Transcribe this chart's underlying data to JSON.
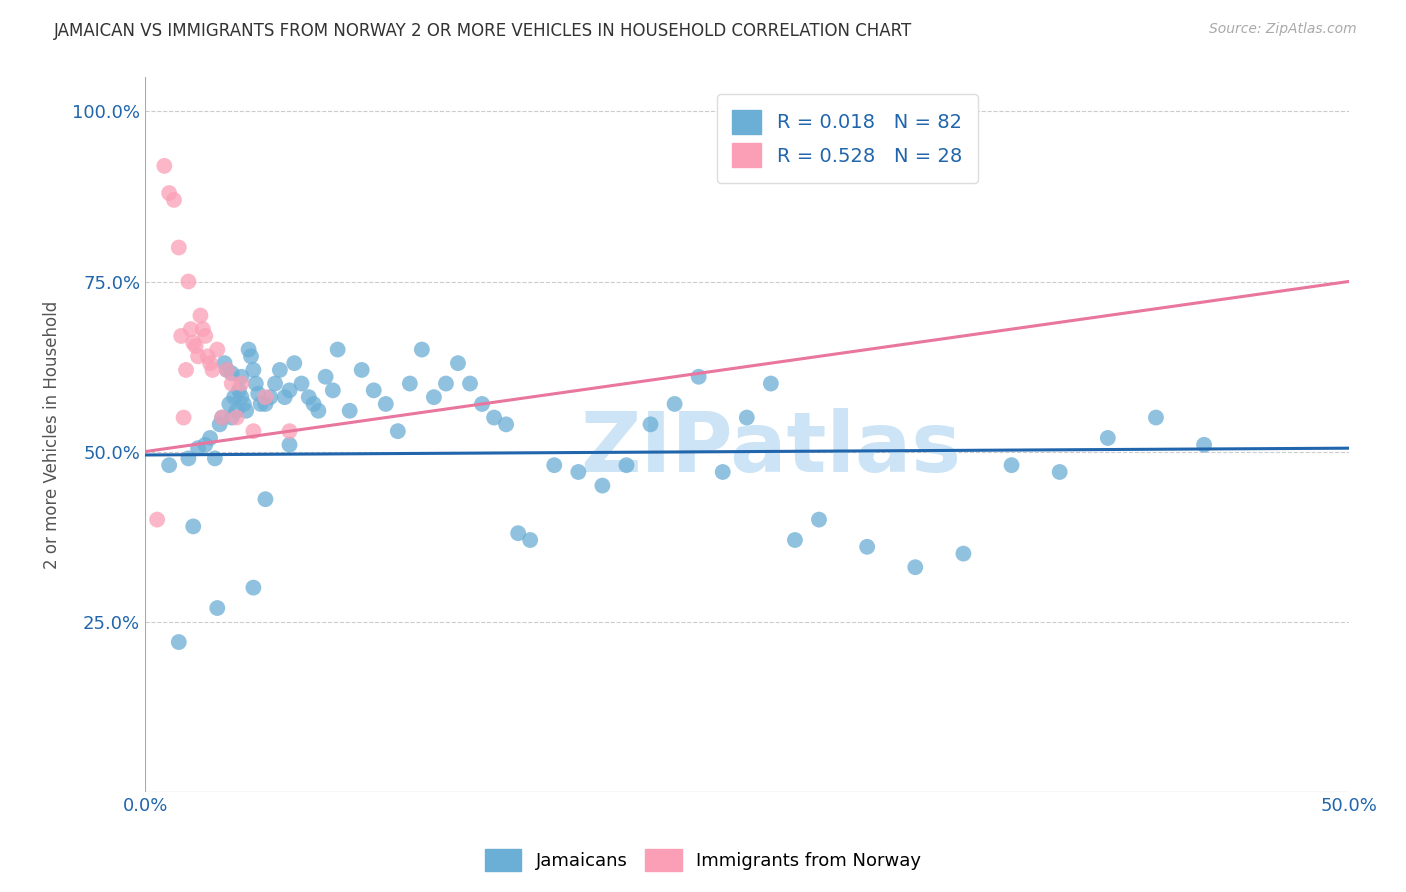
{
  "title": "JAMAICAN VS IMMIGRANTS FROM NORWAY 2 OR MORE VEHICLES IN HOUSEHOLD CORRELATION CHART",
  "source": "Source: ZipAtlas.com",
  "ylabel": "2 or more Vehicles in Household",
  "yticks": [
    0.0,
    25.0,
    50.0,
    75.0,
    100.0
  ],
  "ytick_labels": [
    "",
    "25.0%",
    "50.0%",
    "75.0%",
    "100.0%"
  ],
  "xtick_labels": [
    "0.0%",
    "",
    "",
    "",
    "",
    "50.0%"
  ],
  "xlim_min": 0.0,
  "xlim_max": 50.0,
  "ylim_min": 0.0,
  "ylim_max": 105.0,
  "legend_r1": "R = 0.018",
  "legend_n1": "N = 82",
  "legend_r2": "R = 0.528",
  "legend_n2": "N = 28",
  "blue_color": "#6baed6",
  "pink_color": "#fa9fb5",
  "blue_line_color": "#2166ac",
  "pink_line_color": "#e8769e",
  "axis_label_color": "#2166ac",
  "watermark": "ZIPatlas",
  "watermark_color": "#cce4f5",
  "grid_color": "#cccccc",
  "blue_label": "Jamaicans",
  "pink_label": "Immigrants from Norway",
  "blue_trend_x": [
    0.0,
    50.0
  ],
  "blue_trend_y": [
    49.5,
    50.5
  ],
  "pink_trend_x": [
    0.0,
    50.0
  ],
  "pink_trend_y": [
    50.0,
    75.0
  ],
  "blue_x": [
    1.4,
    1.8,
    2.2,
    2.5,
    2.7,
    2.9,
    3.1,
    3.2,
    3.3,
    3.4,
    3.5,
    3.6,
    3.6,
    3.7,
    3.8,
    3.9,
    4.0,
    4.0,
    4.1,
    4.2,
    4.3,
    4.4,
    4.5,
    4.6,
    4.7,
    4.8,
    5.0,
    5.2,
    5.4,
    5.6,
    5.8,
    6.0,
    6.2,
    6.5,
    6.8,
    7.0,
    7.2,
    7.5,
    7.8,
    8.0,
    8.5,
    9.0,
    9.5,
    10.0,
    10.5,
    11.0,
    11.5,
    12.0,
    12.5,
    13.0,
    13.5,
    14.0,
    14.5,
    15.0,
    15.5,
    16.0,
    17.0,
    18.0,
    19.0,
    20.0,
    21.0,
    22.0,
    23.0,
    24.0,
    25.0,
    26.0,
    27.0,
    28.0,
    30.0,
    32.0,
    34.0,
    36.0,
    38.0,
    40.0,
    42.0,
    44.0,
    1.0,
    2.0,
    3.0,
    4.5,
    5.0,
    6.0
  ],
  "blue_y": [
    22.0,
    49.0,
    50.5,
    51.0,
    52.0,
    49.0,
    54.0,
    55.0,
    63.0,
    62.0,
    57.0,
    61.5,
    55.0,
    58.0,
    56.0,
    59.0,
    61.0,
    58.0,
    57.0,
    56.0,
    65.0,
    64.0,
    62.0,
    60.0,
    58.5,
    57.0,
    57.0,
    58.0,
    60.0,
    62.0,
    58.0,
    59.0,
    63.0,
    60.0,
    58.0,
    57.0,
    56.0,
    61.0,
    59.0,
    65.0,
    56.0,
    62.0,
    59.0,
    57.0,
    53.0,
    60.0,
    65.0,
    58.0,
    60.0,
    63.0,
    60.0,
    57.0,
    55.0,
    54.0,
    38.0,
    37.0,
    48.0,
    47.0,
    45.0,
    48.0,
    54.0,
    57.0,
    61.0,
    47.0,
    55.0,
    60.0,
    37.0,
    40.0,
    36.0,
    33.0,
    35.0,
    48.0,
    47.0,
    52.0,
    55.0,
    51.0,
    48.0,
    39.0,
    27.0,
    30.0,
    43.0,
    51.0
  ],
  "pink_x": [
    0.5,
    0.8,
    1.0,
    1.2,
    1.4,
    1.5,
    1.6,
    1.7,
    1.8,
    1.9,
    2.0,
    2.1,
    2.2,
    2.3,
    2.4,
    2.5,
    2.6,
    2.7,
    2.8,
    3.0,
    3.2,
    3.4,
    3.6,
    3.8,
    4.0,
    4.5,
    5.0,
    6.0
  ],
  "pink_y": [
    40.0,
    92.0,
    88.0,
    87.0,
    80.0,
    67.0,
    55.0,
    62.0,
    75.0,
    68.0,
    66.0,
    65.5,
    64.0,
    70.0,
    68.0,
    67.0,
    64.0,
    63.0,
    62.0,
    65.0,
    55.0,
    62.0,
    60.0,
    55.0,
    60.0,
    53.0,
    58.0,
    53.0
  ]
}
